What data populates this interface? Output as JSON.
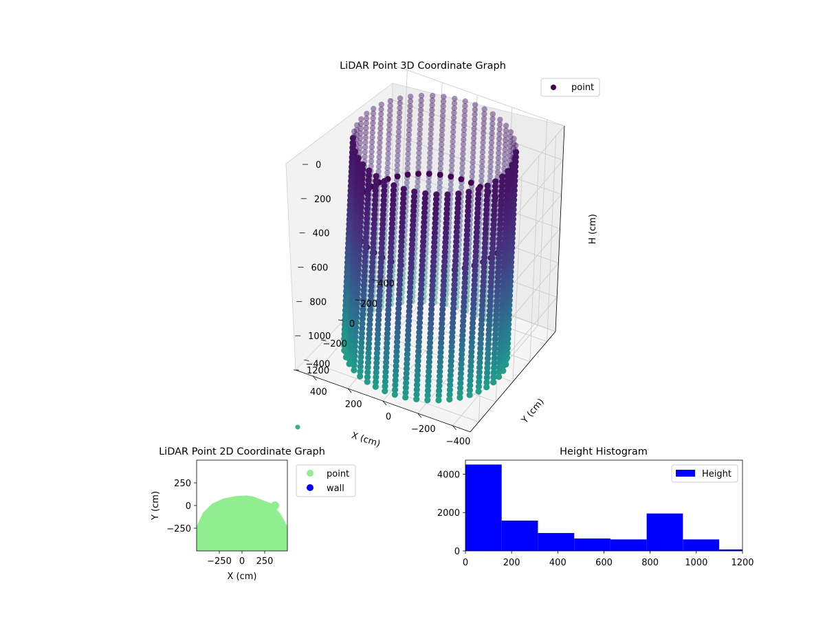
{
  "chart_data": [
    {
      "type": "scatter",
      "projection": "3d",
      "title": "LiDAR Point 3D Coordinate Graph",
      "xlabel": "X (cm)",
      "ylabel": "Y (cm)",
      "zlabel": "H (cm)",
      "x_ticks": [
        -400,
        -200,
        0,
        200,
        400
      ],
      "y_ticks": [
        -400,
        -200,
        0,
        200,
        400
      ],
      "z_ticks": [
        0,
        200,
        400,
        600,
        800,
        1000,
        1200
      ],
      "xlim": [
        -500,
        500
      ],
      "ylim": [
        -500,
        500
      ],
      "zlim": [
        0,
        1200
      ],
      "z_inverted": true,
      "grid": true,
      "legend": {
        "placement": "top-right",
        "entries": [
          {
            "label": "point",
            "color": "#440154"
          }
        ]
      },
      "colormap": "viridis",
      "series": [
        {
          "name": "point",
          "shape": "cylinder",
          "radius_cm": 420,
          "height_range": [
            0,
            1200
          ],
          "columns": 46,
          "levels": 44,
          "ring_height_cm": 450
        }
      ]
    },
    {
      "type": "scatter",
      "title": "LiDAR Point 2D Coordinate Graph",
      "xlabel": "X (cm)",
      "ylabel": "Y (cm)",
      "x_ticks": [
        -250,
        0,
        250
      ],
      "y_ticks": [
        250,
        0,
        -250
      ],
      "xlim": [
        -500,
        500
      ],
      "ylim": [
        -500,
        500
      ],
      "legend": {
        "placement": "right-outside",
        "entries": [
          {
            "label": "point",
            "color": "#90ee90"
          },
          {
            "label": "wall",
            "color": "#0000ff"
          }
        ]
      },
      "series": [
        {
          "name": "point",
          "color": "#90ee90",
          "shape": "filled-region",
          "boundary": [
            [
              -500,
              -500
            ],
            [
              -500,
              -230
            ],
            [
              -430,
              -80
            ],
            [
              -330,
              20
            ],
            [
              -200,
              80
            ],
            [
              -60,
              105
            ],
            [
              60,
              110
            ],
            [
              120,
              100
            ],
            [
              200,
              70
            ],
            [
              330,
              20
            ],
            [
              430,
              -100
            ],
            [
              500,
              -230
            ],
            [
              500,
              -500
            ]
          ]
        },
        {
          "name": "wall",
          "color": "#0000ff",
          "points": []
        }
      ]
    },
    {
      "type": "bar",
      "kind": "histogram",
      "title": "Height Histogram",
      "bin_edges": [
        0,
        157,
        314,
        471,
        628,
        785,
        942,
        1099,
        1200
      ],
      "values": [
        4500,
        1580,
        930,
        650,
        600,
        1950,
        600,
        80
      ],
      "x_ticks": [
        0,
        200,
        400,
        600,
        800,
        1000,
        1200
      ],
      "y_ticks": [
        0,
        2000,
        4000
      ],
      "xlim": [
        0,
        1200
      ],
      "ylim": [
        0,
        4730
      ],
      "color": "#0000ff",
      "legend": {
        "placement": "top-right",
        "entries": [
          {
            "label": "Height",
            "color": "#0000ff"
          }
        ]
      }
    }
  ]
}
